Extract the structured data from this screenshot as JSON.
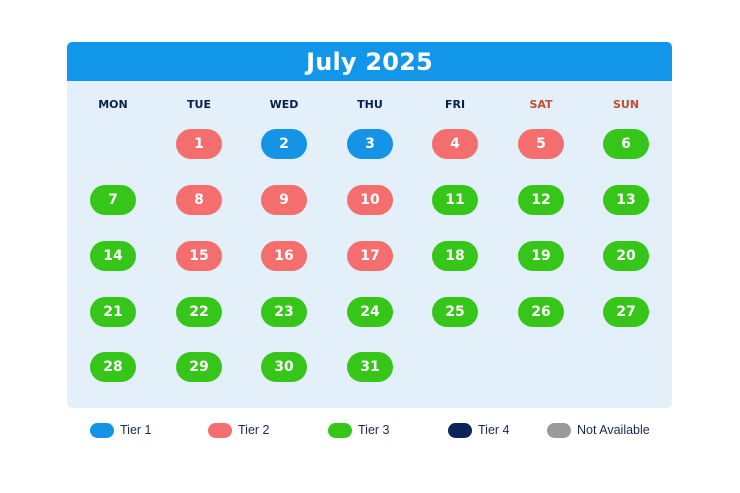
{
  "calendar": {
    "title": "July 2025",
    "weekdays": [
      {
        "label": "MON",
        "weekend": false
      },
      {
        "label": "TUE",
        "weekend": false
      },
      {
        "label": "WED",
        "weekend": false
      },
      {
        "label": "THU",
        "weekend": false
      },
      {
        "label": "FRI",
        "weekend": false
      },
      {
        "label": "SAT",
        "weekend": true
      },
      {
        "label": "SUN",
        "weekend": true
      }
    ],
    "first_weekday_index": 1,
    "days": [
      {
        "day": "1",
        "tier": "tier2"
      },
      {
        "day": "2",
        "tier": "tier1"
      },
      {
        "day": "3",
        "tier": "tier1"
      },
      {
        "day": "4",
        "tier": "tier2"
      },
      {
        "day": "5",
        "tier": "tier2"
      },
      {
        "day": "6",
        "tier": "tier3"
      },
      {
        "day": "7",
        "tier": "tier3"
      },
      {
        "day": "8",
        "tier": "tier2"
      },
      {
        "day": "9",
        "tier": "tier2"
      },
      {
        "day": "10",
        "tier": "tier2"
      },
      {
        "day": "11",
        "tier": "tier3"
      },
      {
        "day": "12",
        "tier": "tier3"
      },
      {
        "day": "13",
        "tier": "tier3"
      },
      {
        "day": "14",
        "tier": "tier3"
      },
      {
        "day": "15",
        "tier": "tier2"
      },
      {
        "day": "16",
        "tier": "tier2"
      },
      {
        "day": "17",
        "tier": "tier2"
      },
      {
        "day": "18",
        "tier": "tier3"
      },
      {
        "day": "19",
        "tier": "tier3"
      },
      {
        "day": "20",
        "tier": "tier3"
      },
      {
        "day": "21",
        "tier": "tier3"
      },
      {
        "day": "22",
        "tier": "tier3"
      },
      {
        "day": "23",
        "tier": "tier3"
      },
      {
        "day": "24",
        "tier": "tier3"
      },
      {
        "day": "25",
        "tier": "tier3"
      },
      {
        "day": "26",
        "tier": "tier3"
      },
      {
        "day": "27",
        "tier": "tier3"
      },
      {
        "day": "28",
        "tier": "tier3"
      },
      {
        "day": "29",
        "tier": "tier3"
      },
      {
        "day": "30",
        "tier": "tier3"
      },
      {
        "day": "31",
        "tier": "tier3"
      }
    ]
  },
  "legend": [
    {
      "key": "tier1",
      "label": "Tier 1",
      "color": "#1593e6"
    },
    {
      "key": "tier2",
      "label": "Tier 2",
      "color": "#f46e6e"
    },
    {
      "key": "tier3",
      "label": "Tier 3",
      "color": "#36c61a"
    },
    {
      "key": "tier4",
      "label": "Tier 4",
      "color": "#0c2459"
    },
    {
      "key": "na",
      "label": "Not Available",
      "color": "#9a9a9a"
    }
  ],
  "colors": {
    "header_bg": "#1196ea",
    "card_bg": "#e4f0f9",
    "weekday_text": "#0b1f4d",
    "weekend_text": "#c84a30"
  }
}
